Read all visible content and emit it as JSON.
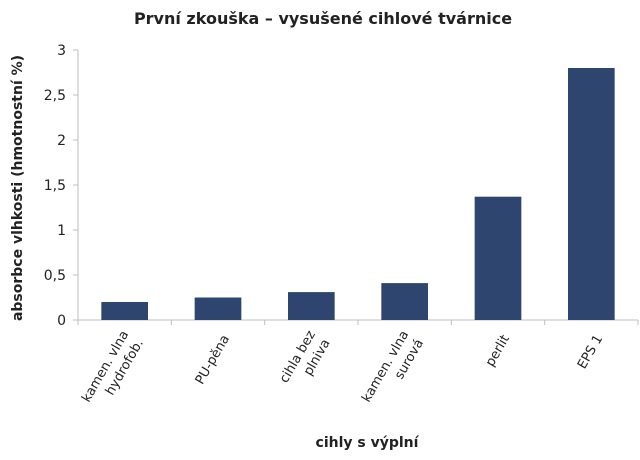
{
  "chart_data": {
    "type": "bar",
    "title": "První zkouška – vysušené cihlové tvárnice",
    "xlabel": "cihly s výplní",
    "ylabel": "absorbce vlhkosti (hmotnostní %)",
    "categories": [
      [
        "kamen. vlna",
        "hydrofob."
      ],
      [
        "PU-pěna"
      ],
      [
        "cihla bez",
        "plniva"
      ],
      [
        "kamen. vlna",
        "surová"
      ],
      [
        "perlit"
      ],
      [
        "EPS 1"
      ]
    ],
    "values": [
      0.2,
      0.25,
      0.31,
      0.41,
      1.37,
      2.8
    ],
    "ylim": [
      0,
      3
    ],
    "yticks": [
      "0",
      "0,5",
      "1",
      "1,5",
      "2",
      "2,5",
      "3"
    ],
    "ytick_values": [
      0,
      0.5,
      1,
      1.5,
      2,
      2.5,
      3
    ],
    "grid": false,
    "bar_color": "#2e4570",
    "axis_color": "#bfbfbf"
  }
}
